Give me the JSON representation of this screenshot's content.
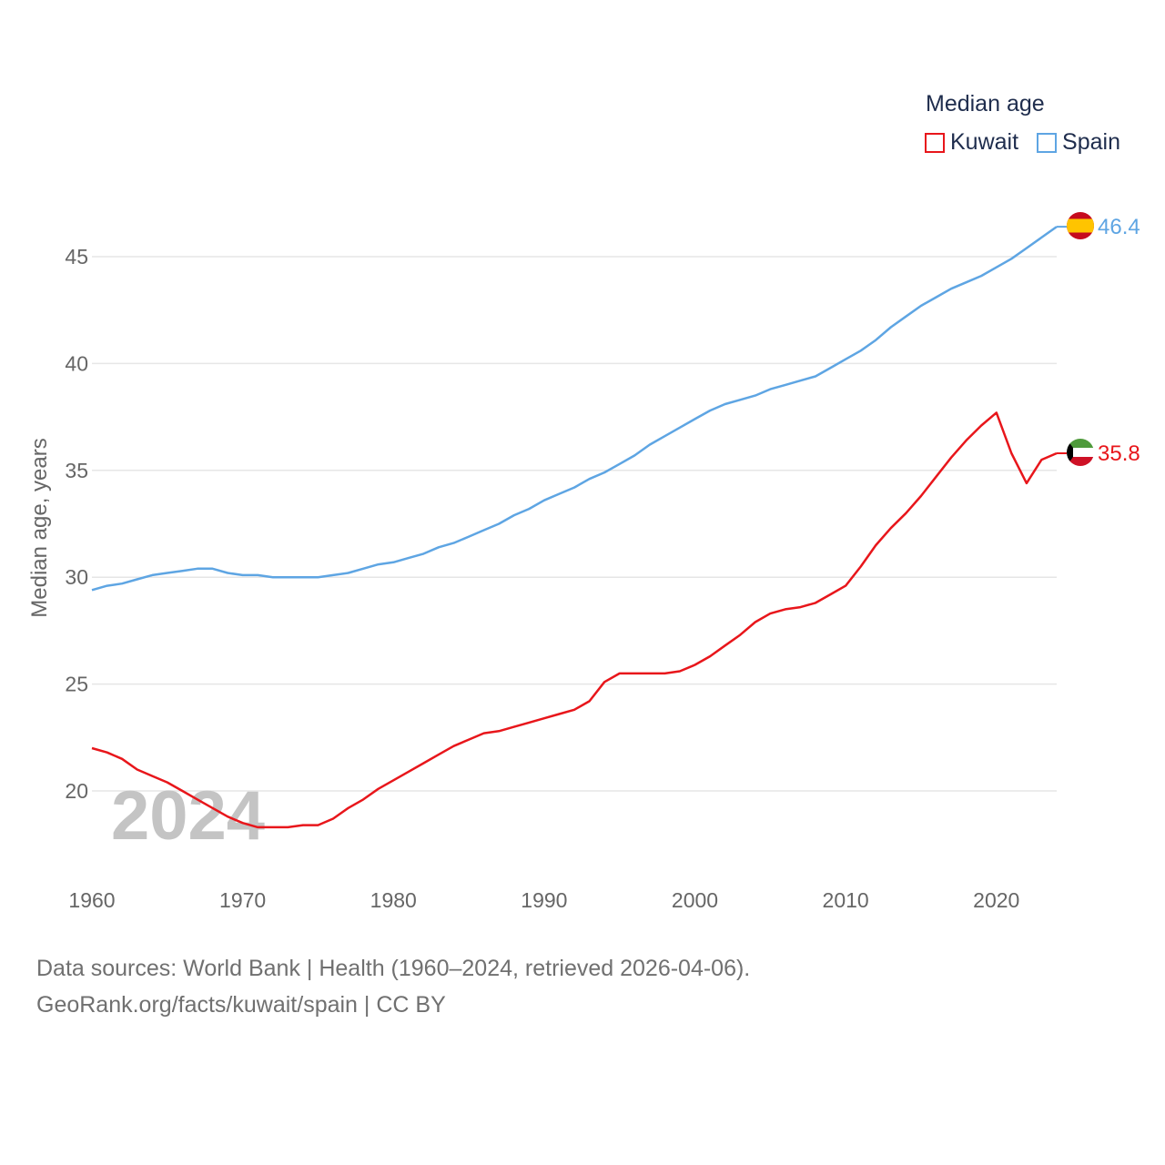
{
  "legend": {
    "title": "Median age",
    "items": [
      {
        "name": "Kuwait",
        "color": "#e8161b"
      },
      {
        "name": "Spain",
        "color": "#5ea5e3"
      }
    ]
  },
  "watermark_year": "2024",
  "source_line1": "Data sources: World Bank | Health (1960–2024, retrieved 2026-04-06).",
  "source_line2": "GeoRank.org/facts/kuwait/spain | CC BY",
  "chart_data": {
    "type": "line",
    "title": "Median age",
    "xlabel": "",
    "ylabel": "Median age, years",
    "xlim": [
      1960,
      2024
    ],
    "ylim": [
      17,
      47
    ],
    "xticks": [
      1960,
      1970,
      1980,
      1990,
      2000,
      2010,
      2020
    ],
    "yticks": [
      20,
      25,
      30,
      35,
      40,
      45
    ],
    "grid": true,
    "x": [
      1960,
      1961,
      1962,
      1963,
      1964,
      1965,
      1966,
      1967,
      1968,
      1969,
      1970,
      1971,
      1972,
      1973,
      1974,
      1975,
      1976,
      1977,
      1978,
      1979,
      1980,
      1981,
      1982,
      1983,
      1984,
      1985,
      1986,
      1987,
      1988,
      1989,
      1990,
      1991,
      1992,
      1993,
      1994,
      1995,
      1996,
      1997,
      1998,
      1999,
      2000,
      2001,
      2002,
      2003,
      2004,
      2005,
      2006,
      2007,
      2008,
      2009,
      2010,
      2011,
      2012,
      2013,
      2014,
      2015,
      2016,
      2017,
      2018,
      2019,
      2020,
      2021,
      2022,
      2023,
      2024
    ],
    "series": [
      {
        "name": "Kuwait",
        "color": "#e8161b",
        "end_label": "35.8",
        "values": [
          22.0,
          21.8,
          21.5,
          21.0,
          20.7,
          20.4,
          20.0,
          19.6,
          19.2,
          18.8,
          18.5,
          18.3,
          18.3,
          18.3,
          18.4,
          18.4,
          18.7,
          19.2,
          19.6,
          20.1,
          20.5,
          20.9,
          21.3,
          21.7,
          22.1,
          22.4,
          22.7,
          22.8,
          23.0,
          23.2,
          23.4,
          23.6,
          23.8,
          24.2,
          25.1,
          25.5,
          25.5,
          25.5,
          25.5,
          25.6,
          25.9,
          26.3,
          26.8,
          27.3,
          27.9,
          28.3,
          28.5,
          28.6,
          28.8,
          29.2,
          29.6,
          30.5,
          31.5,
          32.3,
          33.0,
          33.8,
          34.7,
          35.6,
          36.4,
          37.1,
          37.7,
          35.8,
          34.4,
          35.5,
          35.8
        ]
      },
      {
        "name": "Spain",
        "color": "#5ea5e3",
        "end_label": "46.4",
        "values": [
          29.4,
          29.6,
          29.7,
          29.9,
          30.1,
          30.2,
          30.3,
          30.4,
          30.4,
          30.2,
          30.1,
          30.1,
          30.0,
          30.0,
          30.0,
          30.0,
          30.1,
          30.2,
          30.4,
          30.6,
          30.7,
          30.9,
          31.1,
          31.4,
          31.6,
          31.9,
          32.2,
          32.5,
          32.9,
          33.2,
          33.6,
          33.9,
          34.2,
          34.6,
          34.9,
          35.3,
          35.7,
          36.2,
          36.6,
          37.0,
          37.4,
          37.8,
          38.1,
          38.3,
          38.5,
          38.8,
          39.0,
          39.2,
          39.4,
          39.8,
          40.2,
          40.6,
          41.1,
          41.7,
          42.2,
          42.7,
          43.1,
          43.5,
          43.8,
          44.1,
          44.5,
          44.9,
          45.4,
          45.9,
          46.4
        ]
      }
    ]
  }
}
